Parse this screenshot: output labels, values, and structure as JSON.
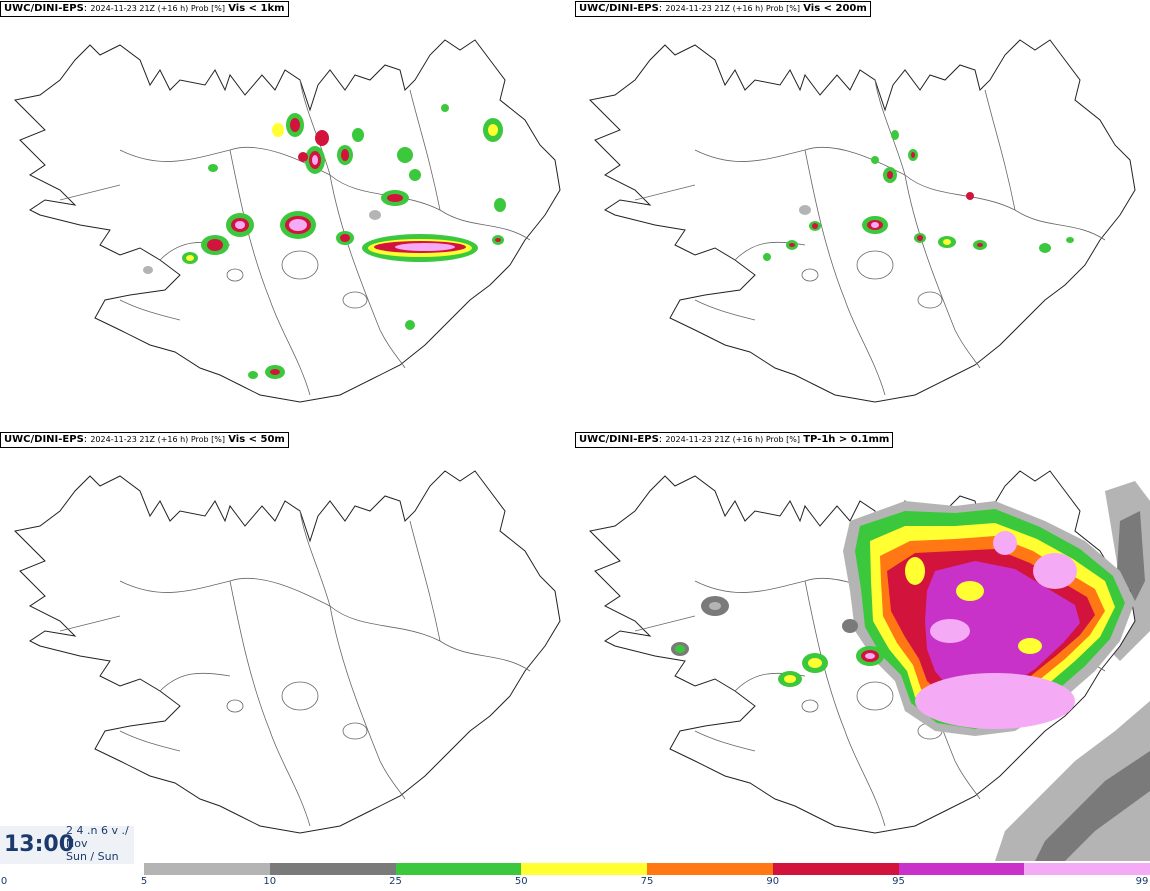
{
  "panels": [
    {
      "model": "UWC/DINI-EPS",
      "meta": "2024-11-23 21Z (+16 h) Prob [%]",
      "param": "Vis < 1km"
    },
    {
      "model": "UWC/DINI-EPS",
      "meta": "2024-11-23 21Z (+16 h) Prob [%]",
      "param": "Vis < 200m"
    },
    {
      "model": "UWC/DINI-EPS",
      "meta": "2024-11-23 21Z (+16 h) Prob [%]",
      "param": "Vis < 50m"
    },
    {
      "model": "UWC/DINI-EPS",
      "meta": "2024-11-23 21Z (+16 h) Prob [%]",
      "param": "TP-1h > 0.1mm"
    }
  ],
  "timestamp": {
    "time": "13:00",
    "line1": "2 4 .n 6 v ./",
    "line2": "Nov",
    "line3": "Sun / Sun"
  },
  "legend": {
    "ticks": [
      "0",
      "5",
      "10",
      "25",
      "50",
      "75",
      "90",
      "95",
      "99"
    ],
    "colors": [
      "#b4b4b4",
      "#7a7a7a",
      "#3cc83c",
      "#ffff32",
      "#ff7814",
      "#d2143c",
      "#c832c8",
      "#f5aaf5"
    ]
  }
}
